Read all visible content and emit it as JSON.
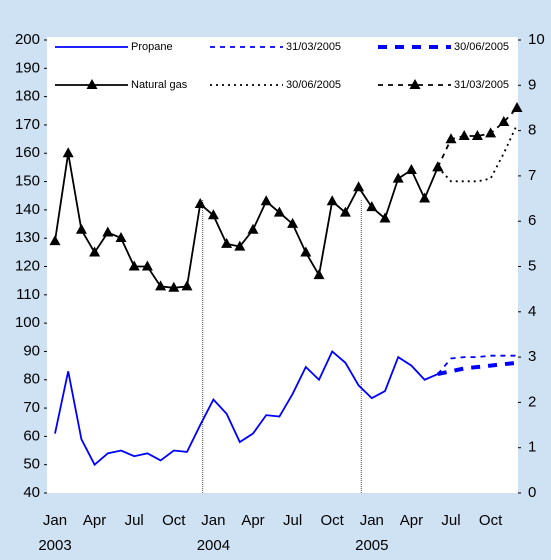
{
  "chart_data": {
    "type": "line",
    "categories": [
      "Jan",
      null,
      null,
      "Apr",
      null,
      null,
      "Jul",
      null,
      null,
      "Oct",
      null,
      null,
      "Jan",
      null,
      null,
      "Apr",
      null,
      null,
      "Jul",
      null,
      null,
      "Oct",
      null,
      null,
      "Jan",
      null,
      null,
      "Apr",
      null,
      null,
      "Jul",
      null,
      null,
      "Oct",
      null,
      null
    ],
    "years": [
      "2003",
      "2004",
      "2005"
    ],
    "ylim": [
      40,
      200
    ],
    "yticks": [
      40,
      50,
      60,
      70,
      80,
      90,
      100,
      110,
      120,
      130,
      140,
      150,
      160,
      170,
      180,
      190,
      200
    ],
    "y2lim": [
      0,
      10
    ],
    "y2ticks": [
      0,
      1,
      2,
      3,
      4,
      5,
      6,
      7,
      8,
      9,
      10
    ],
    "series": [
      {
        "name": "Propane",
        "color": "#0000ff",
        "style": "solid",
        "values": [
          61,
          83,
          59,
          50,
          54,
          55,
          53,
          54,
          51.5,
          55,
          54.5,
          64,
          73,
          68,
          58,
          61,
          67.5,
          67,
          75,
          84.5,
          80,
          90,
          86,
          78,
          73.5,
          76,
          88,
          85,
          80,
          82,
          null,
          null,
          null,
          null,
          null,
          null
        ]
      },
      {
        "name": "31/03/2005",
        "color": "#0000ff",
        "style": "dashed",
        "values": [
          null,
          null,
          null,
          null,
          null,
          null,
          null,
          null,
          null,
          null,
          null,
          null,
          null,
          null,
          null,
          null,
          null,
          null,
          null,
          null,
          null,
          null,
          null,
          null,
          null,
          null,
          null,
          null,
          null,
          82,
          87.5,
          88,
          88,
          88.5,
          88.5,
          88.5
        ]
      },
      {
        "name": "30/06/2005",
        "color": "#0000ff",
        "style": "thick-dashed",
        "values": [
          null,
          null,
          null,
          null,
          null,
          null,
          null,
          null,
          null,
          null,
          null,
          null,
          null,
          null,
          null,
          null,
          null,
          null,
          null,
          null,
          null,
          null,
          null,
          null,
          null,
          null,
          null,
          null,
          null,
          82,
          83,
          84,
          84.5,
          85,
          85.5,
          86
        ]
      },
      {
        "name": "Natural gas",
        "color": "#000000",
        "style": "solid",
        "marker": "triangle",
        "axis": "y2",
        "values": [
          5.56,
          7.5,
          5.81,
          5.31,
          5.75,
          5.63,
          5.0,
          5.0,
          4.56,
          4.53,
          4.56,
          6.38,
          6.13,
          5.5,
          5.44,
          5.81,
          6.44,
          6.19,
          5.94,
          5.31,
          4.81,
          6.44,
          6.19,
          6.75,
          6.31,
          6.06,
          6.94,
          7.13,
          6.5,
          7.19,
          null,
          null,
          null,
          null,
          null,
          null
        ]
      },
      {
        "name": "30/06/2005",
        "color": "#000000",
        "style": "dotted",
        "axis": "y2",
        "values": [
          null,
          null,
          null,
          null,
          null,
          null,
          null,
          null,
          null,
          null,
          null,
          null,
          null,
          null,
          null,
          null,
          null,
          null,
          null,
          null,
          null,
          null,
          null,
          null,
          null,
          null,
          null,
          null,
          null,
          7.19,
          6.88,
          6.88,
          6.88,
          6.94,
          7.5,
          8.13
        ]
      },
      {
        "name": "31/03/2005",
        "color": "#000000",
        "style": "dashed",
        "marker": "triangle",
        "axis": "y2",
        "values": [
          null,
          null,
          null,
          null,
          null,
          null,
          null,
          null,
          null,
          null,
          null,
          null,
          null,
          null,
          null,
          null,
          null,
          null,
          null,
          null,
          null,
          null,
          null,
          null,
          null,
          null,
          null,
          null,
          null,
          7.19,
          7.81,
          7.88,
          7.88,
          7.94,
          8.19,
          8.5
        ]
      }
    ]
  }
}
